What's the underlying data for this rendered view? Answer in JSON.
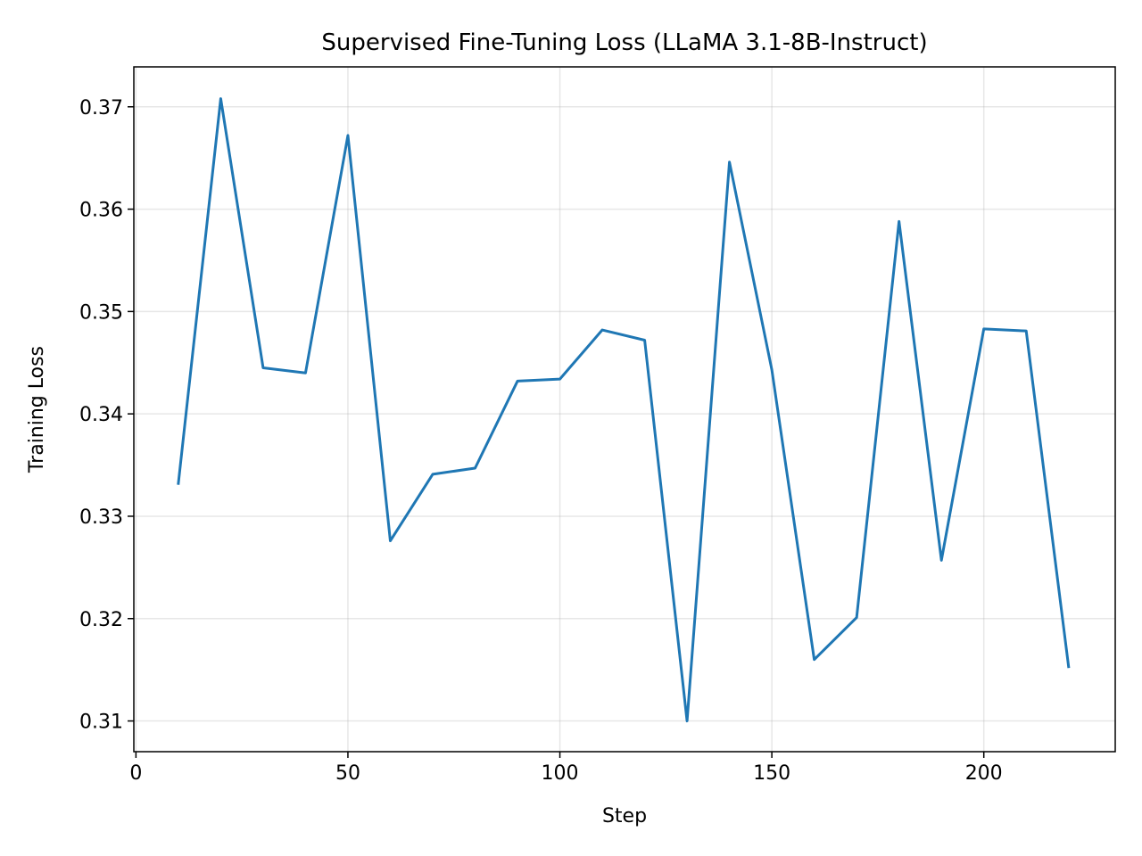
{
  "chart_data": {
    "type": "line",
    "title": "Supervised Fine-Tuning Loss (LLaMA 3.1-8B-Instruct)",
    "xlabel": "Step",
    "ylabel": "Training Loss",
    "xlim": [
      -0.5,
      231
    ],
    "ylim": [
      0.307,
      0.3739
    ],
    "x_ticks": [
      0,
      50,
      100,
      150,
      200
    ],
    "x_tick_labels": [
      "0",
      "50",
      "100",
      "150",
      "200"
    ],
    "y_ticks": [
      0.31,
      0.32,
      0.33,
      0.34,
      0.35,
      0.36,
      0.37
    ],
    "y_tick_labels": [
      "0.31",
      "0.32",
      "0.33",
      "0.34",
      "0.35",
      "0.36",
      "0.37"
    ],
    "grid": true,
    "series": [
      {
        "color": "#1f77b4",
        "x": [
          10,
          20,
          30,
          40,
          50,
          60,
          70,
          80,
          90,
          100,
          110,
          120,
          130,
          140,
          150,
          160,
          170,
          180,
          190,
          200,
          210,
          220
        ],
        "values": [
          0.3332,
          0.3708,
          0.3445,
          0.344,
          0.3672,
          0.3276,
          0.3341,
          0.3347,
          0.3432,
          0.3434,
          0.3482,
          0.3472,
          0.31,
          0.3646,
          0.3443,
          0.316,
          0.3201,
          0.3588,
          0.3257,
          0.3483,
          0.3481,
          0.3153
        ]
      }
    ]
  }
}
